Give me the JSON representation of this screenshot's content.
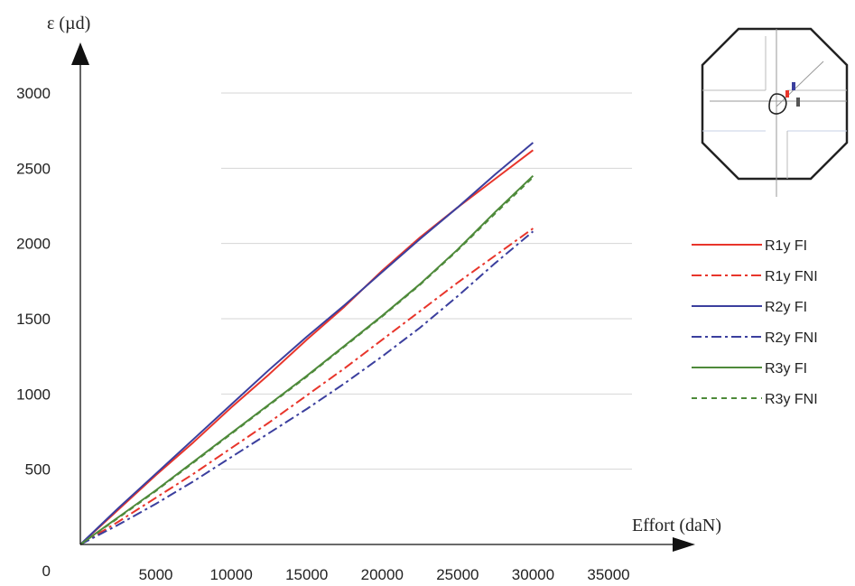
{
  "chart_data": {
    "type": "line",
    "title": "",
    "xlabel": "Effort (daN)",
    "ylabel": "ε (µd)",
    "xlim": [
      0,
      35000
    ],
    "ylim": [
      0,
      3000
    ],
    "xticks": [
      5000,
      10000,
      15000,
      20000,
      25000,
      30000,
      35000
    ],
    "yticks": [
      0,
      500,
      1000,
      1500,
      2000,
      2500,
      3000
    ],
    "grid": "horizontal",
    "legend_position": "right",
    "series": [
      {
        "name": "R1y FI",
        "color": "#e8352b",
        "dash": "solid",
        "x": [
          0,
          2500,
          5000,
          7500,
          10000,
          12500,
          15000,
          17500,
          20000,
          22500,
          25000,
          27500,
          30000
        ],
        "y": [
          0,
          230,
          460,
          680,
          910,
          1130,
          1360,
          1580,
          1820,
          2040,
          2240,
          2430,
          2620
        ]
      },
      {
        "name": "R1y FNI",
        "color": "#e8352b",
        "dash": "dashdot",
        "x": [
          0,
          2500,
          5000,
          7500,
          10000,
          12500,
          15000,
          17500,
          20000,
          22500,
          25000,
          27500,
          30000
        ],
        "y": [
          0,
          150,
          310,
          470,
          640,
          810,
          990,
          1170,
          1360,
          1550,
          1740,
          1920,
          2100
        ]
      },
      {
        "name": "R2y FI",
        "color": "#3b3f9e",
        "dash": "solid",
        "x": [
          0,
          2500,
          5000,
          7500,
          10000,
          12500,
          15000,
          17500,
          20000,
          22500,
          25000,
          27500,
          30000
        ],
        "y": [
          0,
          240,
          470,
          700,
          930,
          1160,
          1380,
          1590,
          1810,
          2030,
          2240,
          2460,
          2670
        ]
      },
      {
        "name": "R2y FNI",
        "color": "#3b3f9e",
        "dash": "dashdot",
        "x": [
          0,
          2500,
          5000,
          7500,
          10000,
          12500,
          15000,
          17500,
          20000,
          22500,
          25000,
          27500,
          30000
        ],
        "y": [
          0,
          130,
          270,
          420,
          580,
          740,
          900,
          1070,
          1250,
          1440,
          1650,
          1870,
          2080
        ]
      },
      {
        "name": "R3y FI",
        "color": "#4e8a3a",
        "dash": "solid",
        "x": [
          0,
          2500,
          5000,
          7500,
          10000,
          12500,
          15000,
          17500,
          20000,
          22500,
          25000,
          27500,
          30000
        ],
        "y": [
          0,
          180,
          360,
          550,
          740,
          930,
          1120,
          1320,
          1520,
          1730,
          1960,
          2210,
          2450
        ]
      },
      {
        "name": "R3y FNI",
        "color": "#4e8a3a",
        "dash": "dashed",
        "x": [
          0,
          2500,
          5000,
          7500,
          10000,
          12500,
          15000,
          17500,
          20000,
          22500,
          25000,
          27500,
          30000
        ],
        "y": [
          0,
          175,
          355,
          545,
          735,
          925,
          1115,
          1315,
          1515,
          1725,
          1955,
          2200,
          2440
        ]
      }
    ]
  }
}
